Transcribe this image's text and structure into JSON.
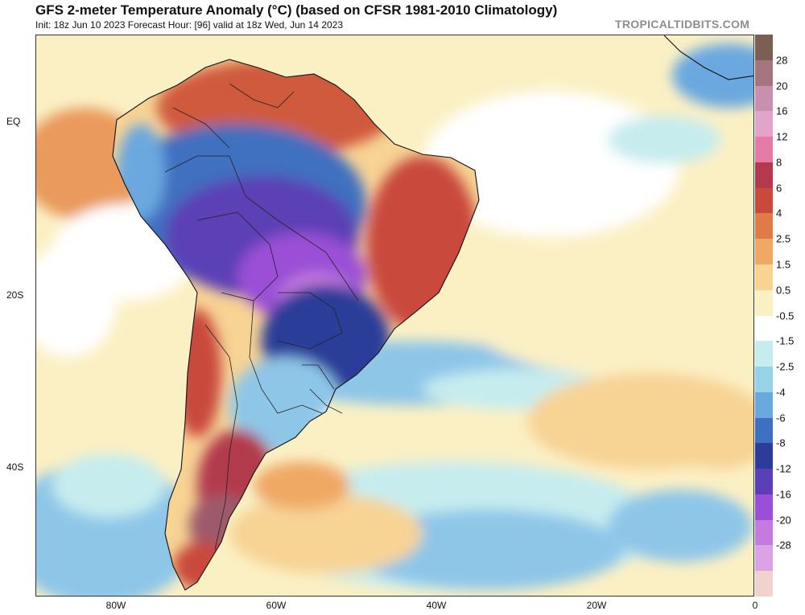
{
  "header": {
    "title": "GFS 2-meter Temperature Anomaly (°C) (based on CFSR 1981-2010 Climatology)",
    "subtitle": "Init: 18z Jun 10 2023   Forecast Hour: [96]   valid at 18z Wed, Jun 14 2023",
    "brand": "TROPICALTIDBITS.COM"
  },
  "map": {
    "lat_labels": [
      "EQ",
      "20S",
      "40S"
    ],
    "lon_labels": [
      "80W",
      "60W",
      "40W",
      "20W",
      "0"
    ]
  },
  "colorbar": {
    "labels": [
      "28",
      "20",
      "16",
      "12",
      "8",
      "6",
      "4",
      "2.5",
      "1.5",
      "0.5",
      "-0.5",
      "-1.5",
      "-2.5",
      "-4",
      "-6",
      "-8",
      "-12",
      "-16",
      "-20",
      "-28"
    ],
    "colors": [
      "#7a5f52",
      "#a4757f",
      "#c98fae",
      "#e3a4cc",
      "#e47aa6",
      "#b23a4c",
      "#c94a3c",
      "#e07a46",
      "#f0a865",
      "#f7d394",
      "#fbf0c4",
      "#ffffff",
      "#c6ecee",
      "#96d3e6",
      "#6aa8df",
      "#3f6fc0",
      "#2c3c98",
      "#5b3fb6",
      "#9a4fd6",
      "#c47adf",
      "#dba3e6",
      "#f1d2cd"
    ]
  }
}
